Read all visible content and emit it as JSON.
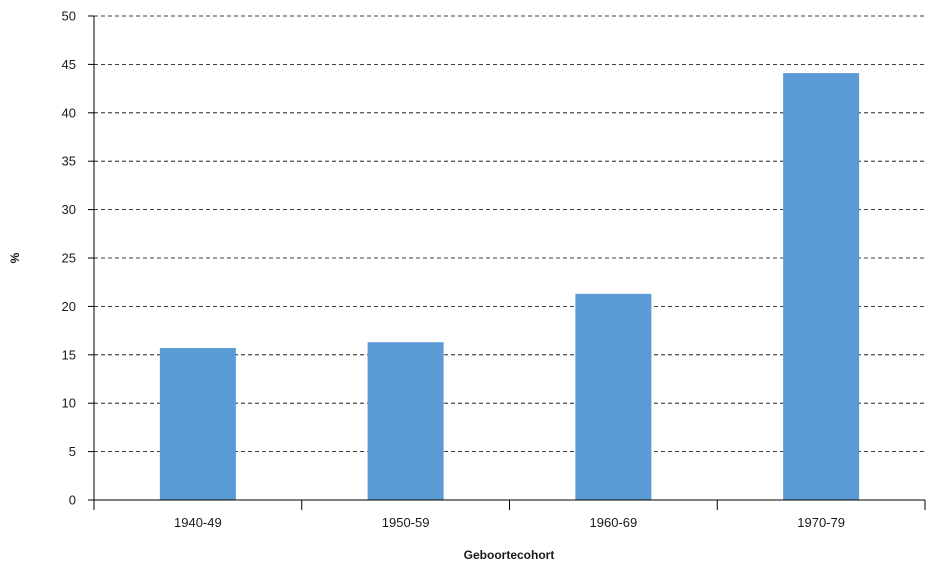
{
  "chart_data": {
    "type": "bar",
    "title": "",
    "xlabel": "Geboortecohort",
    "ylabel": "%",
    "categories": [
      "1940-49",
      "1950-59",
      "1960-69",
      "1970-79"
    ],
    "values": [
      15.7,
      16.3,
      21.3,
      44.1
    ],
    "ylim": [
      0,
      50
    ],
    "yticks": [
      0,
      5,
      10,
      15,
      20,
      25,
      30,
      35,
      40,
      45,
      50
    ],
    "grid": "horizontal-dashed",
    "bar_color": "#5b9bd5",
    "grid_color": "#000000"
  }
}
